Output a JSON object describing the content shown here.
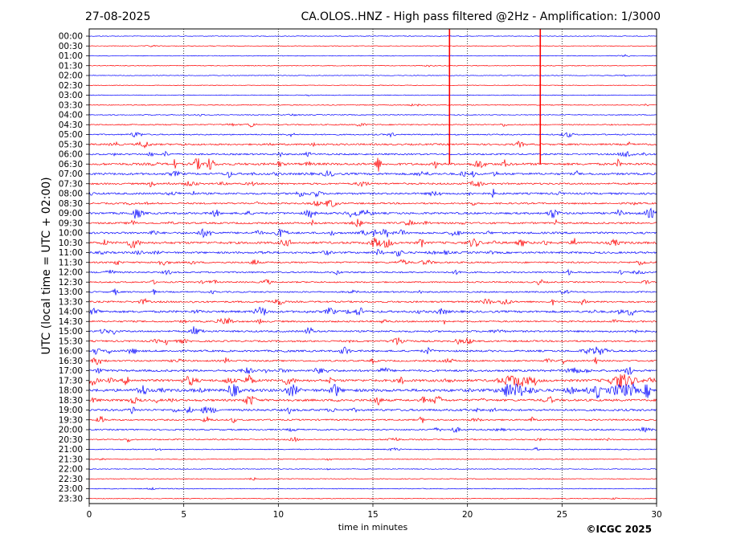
{
  "header": {
    "date": "27-08-2025",
    "title": "CA.OLOS..HNZ - High pass filtered @2Hz - Amplification: 1/3000"
  },
  "footer": {
    "copyright": "©ICGC 2025"
  },
  "chart_data": {
    "type": "line",
    "chart_kind": "helicorder",
    "xlabel": "time in minutes",
    "ylabel": "UTC (local time = UTC + 02:00)",
    "xlim": [
      0,
      30
    ],
    "x_ticks": [
      0,
      5,
      10,
      15,
      20,
      25,
      30
    ],
    "x_tick_labels": [
      "0",
      "5",
      "10",
      "15",
      "20",
      "25",
      "30"
    ],
    "vertical_gridlines_at": [
      5,
      10,
      15,
      20,
      25
    ],
    "row_labels": [
      "00:00",
      "00:30",
      "01:00",
      "01:30",
      "02:00",
      "02:30",
      "03:00",
      "03:30",
      "04:00",
      "04:30",
      "05:00",
      "05:30",
      "06:00",
      "06:30",
      "07:00",
      "07:30",
      "08:00",
      "08:30",
      "09:00",
      "09:30",
      "10:00",
      "10:30",
      "11:00",
      "11:30",
      "12:00",
      "12:30",
      "13:00",
      "13:30",
      "14:00",
      "14:30",
      "15:00",
      "15:30",
      "16:00",
      "16:30",
      "17:00",
      "17:30",
      "18:00",
      "18:30",
      "19:00",
      "19:30",
      "20:00",
      "20:30",
      "21:00",
      "21:30",
      "22:00",
      "22:30",
      "23:00",
      "23:30"
    ],
    "trace_colors": [
      "#0000ff",
      "#ff0000"
    ],
    "row_activity": [
      0.05,
      0.06,
      0.06,
      0.08,
      0.05,
      0.03,
      0.06,
      0.15,
      0.12,
      0.3,
      0.35,
      0.6,
      0.55,
      0.9,
      0.8,
      0.6,
      0.7,
      0.55,
      0.75,
      0.65,
      0.75,
      0.9,
      0.7,
      0.55,
      0.5,
      0.45,
      0.45,
      0.6,
      0.85,
      0.55,
      0.65,
      0.6,
      0.7,
      0.55,
      0.8,
      1.0,
      1.2,
      0.85,
      0.8,
      0.5,
      0.45,
      0.35,
      0.2,
      0.12,
      0.08,
      0.1,
      0.1,
      0.06
    ],
    "spikes": [
      {
        "row": 0,
        "x": 19.05,
        "extent_rows": 13,
        "color": "#ff0000"
      },
      {
        "row": 0,
        "x": 23.85,
        "extent_rows": 13,
        "color": "#ff0000"
      }
    ]
  }
}
